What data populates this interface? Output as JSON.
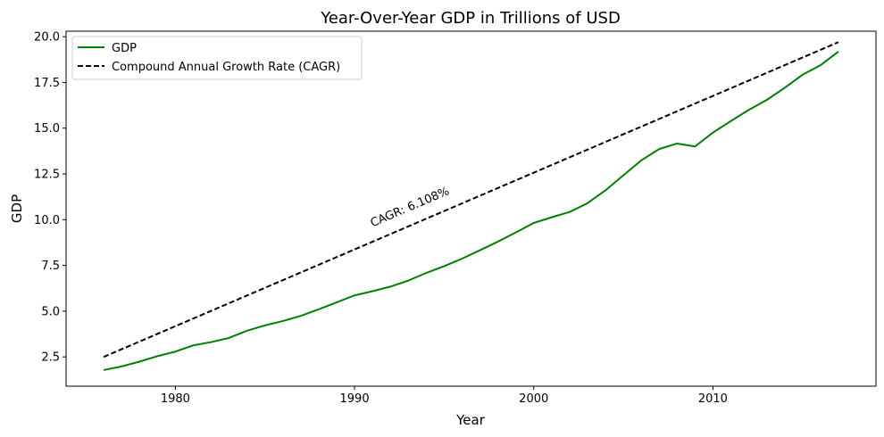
{
  "chart_data": {
    "type": "line",
    "title": "Year-Over-Year GDP in Trillions of USD",
    "xlabel": "Year",
    "ylabel": "GDP",
    "xlim": [
      1973.9,
      2019.1
    ],
    "ylim": [
      0.9,
      20.3
    ],
    "xticks": [
      1980,
      1990,
      2000,
      2010
    ],
    "yticks": [
      2.5,
      5.0,
      7.5,
      10.0,
      12.5,
      15.0,
      17.5,
      20.0
    ],
    "ytick_labels": [
      "2.5",
      "5.0",
      "7.5",
      "10.0",
      "12.5",
      "15.0",
      "17.5",
      "20.0"
    ],
    "x": [
      1976,
      1977,
      1978,
      1979,
      1980,
      1981,
      1982,
      1983,
      1984,
      1985,
      1986,
      1987,
      1988,
      1989,
      1990,
      1991,
      1992,
      1993,
      1994,
      1995,
      1996,
      1997,
      1998,
      1999,
      2000,
      2001,
      2002,
      2003,
      2004,
      2005,
      2006,
      2007,
      2008,
      2009,
      2010,
      2011,
      2012,
      2013,
      2014,
      2015,
      2016,
      2017
    ],
    "series": [
      {
        "name": "GDP",
        "color": "#008000",
        "style": "solid",
        "values": [
          1.78,
          1.98,
          2.24,
          2.54,
          2.79,
          3.13,
          3.31,
          3.54,
          3.93,
          4.22,
          4.46,
          4.74,
          5.1,
          5.48,
          5.86,
          6.09,
          6.34,
          6.67,
          7.09,
          7.46,
          7.87,
          8.33,
          8.8,
          9.3,
          9.82,
          10.13,
          10.42,
          10.9,
          11.6,
          12.42,
          13.24,
          13.86,
          14.16,
          14.0,
          14.76,
          15.39,
          16.0,
          16.54,
          17.2,
          17.92,
          18.44,
          19.18
        ]
      },
      {
        "name": "Compound Annual Growth Rate (CAGR)",
        "color": "#000000",
        "style": "dashed",
        "start": [
          1976,
          2.5
        ],
        "end": [
          2017,
          19.7
        ]
      }
    ],
    "annotation": {
      "text": "CAGR: 6.108%",
      "x": 1991,
      "y": 9.6
    },
    "legend": "top-left"
  }
}
